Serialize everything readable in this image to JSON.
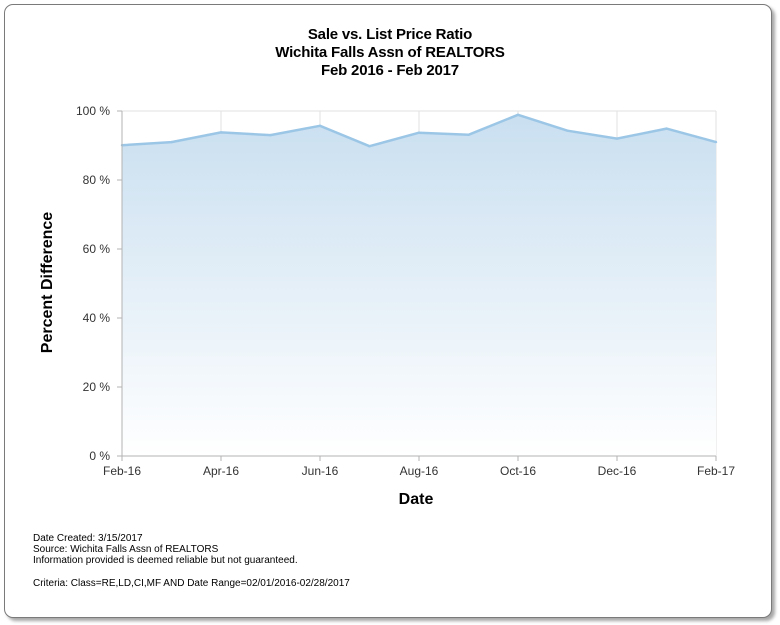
{
  "chart_data": {
    "type": "area",
    "title": [
      "Sale vs. List Price Ratio",
      "Wichita Falls Assn of REALTORS",
      "Feb 2016 - Feb 2017"
    ],
    "xlabel": "Date",
    "ylabel": "Percent Difference",
    "x": [
      "Feb-16",
      "Mar-16",
      "Apr-16",
      "May-16",
      "Jun-16",
      "Jul-16",
      "Aug-16",
      "Sep-16",
      "Oct-16",
      "Nov-16",
      "Dec-16",
      "Jan-17",
      "Feb-17"
    ],
    "x_tick_labels": [
      "Feb-16",
      "Apr-16",
      "Jun-16",
      "Aug-16",
      "Oct-16",
      "Dec-16",
      "Feb-17"
    ],
    "values": [
      90.1,
      91.0,
      93.8,
      93.0,
      95.7,
      89.8,
      93.7,
      93.1,
      98.9,
      94.3,
      92.0,
      94.9,
      91.0
    ],
    "ylim": [
      0,
      100
    ],
    "y_ticks": [
      0,
      20,
      40,
      60,
      80,
      100
    ],
    "y_tick_labels": [
      "0 %",
      "20 %",
      "40 %",
      "60 %",
      "80 %",
      "100 %"
    ],
    "grid": true,
    "colors": {
      "line": "#9cc6e6",
      "fill_top": "#c9dff0",
      "fill_bottom": "#ffffff",
      "grid": "#e2e2e2",
      "axis": "#b3b3b3"
    }
  },
  "footer": {
    "date_created": "Date Created: 3/15/2017",
    "source": "Source: Wichita Falls Assn of REALTORS",
    "disclaimer": "Information provided is deemed reliable but not guaranteed.",
    "criteria": "Criteria: Class=RE,LD,CI,MF AND Date Range=02/01/2016-02/28/2017"
  }
}
